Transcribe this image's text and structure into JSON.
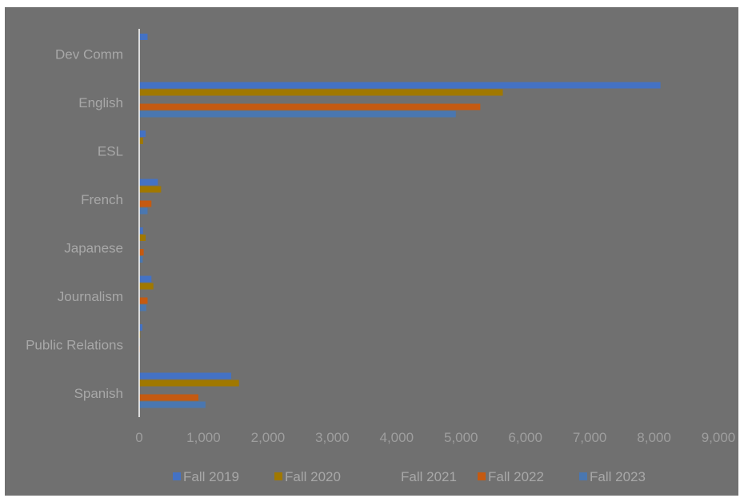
{
  "chart_data": {
    "type": "bar",
    "orientation": "horizontal",
    "title": "",
    "xlabel": "",
    "ylabel": "",
    "categories": [
      "Dev Comm",
      "English",
      "ESL",
      "French",
      "Japanese",
      "Journalism",
      "Public Relations",
      "Spanish"
    ],
    "xlim": [
      0,
      9000
    ],
    "xticks": [
      "0",
      "1,000",
      "2,000",
      "3,000",
      "4,000",
      "5,000",
      "6,000",
      "7,000",
      "8,000",
      "9,000"
    ],
    "grid": false,
    "legend_position": "bottom",
    "series": [
      {
        "name": "Fall 2019",
        "color": "#4472c4",
        "values": [
          130,
          8100,
          100,
          290,
          60,
          190,
          50,
          1430
        ]
      },
      {
        "name": "Fall 2020",
        "color": "#a07800",
        "values": [
          0,
          5650,
          60,
          340,
          100,
          220,
          15,
          1550
        ]
      },
      {
        "name": "Fall 2021",
        "color": "#707070",
        "values": [
          0,
          0,
          0,
          0,
          0,
          0,
          0,
          0
        ]
      },
      {
        "name": "Fall 2022",
        "color": "#c55a11",
        "values": [
          0,
          5300,
          0,
          190,
          70,
          130,
          10,
          920
        ]
      },
      {
        "name": "Fall 2023",
        "color": "#4a77b0",
        "values": [
          0,
          4920,
          0,
          130,
          55,
          110,
          8,
          1030
        ]
      }
    ]
  }
}
